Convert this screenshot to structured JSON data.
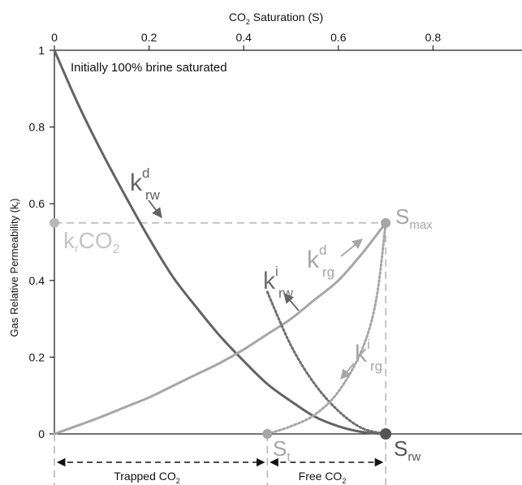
{
  "chart_data": {
    "type": "line",
    "xlabel_main": "CO",
    "xlabel_sub": "2",
    "xlabel_tail": " Saturation (S)",
    "ylabel": "Gas Relative Permeability (k",
    "ylabel_sub": "r",
    "ylabel_tail": ")",
    "xlim": [
      0,
      1
    ],
    "ylim": [
      0,
      1
    ],
    "x_ticks": [
      0,
      0.2,
      0.4,
      0.6,
      0.8
    ],
    "x_tick_labels": [
      "0",
      "0.2",
      "0.4",
      "0.6",
      "0.8"
    ],
    "y_ticks": [
      0,
      0.2,
      0.4,
      0.6,
      0.8,
      1
    ],
    "y_tick_labels": [
      "0",
      "0.2",
      "0.4",
      "0.6",
      "0.8",
      "1"
    ],
    "grid": false,
    "colors": {
      "drainage_brine": "#636363",
      "drainage_gas": "#a6a6a6",
      "imbibition_brine": "#6e6e6e",
      "imbibition_gas": "#a6a6a6",
      "guides": "#b3b3b3",
      "axis": "#222222"
    },
    "annotation_top": "Initially 100% brine saturated",
    "key_points": {
      "S_max": {
        "x": 0.7,
        "y": 0.55
      },
      "S_t": {
        "x": 0.45,
        "y": 0.0
      },
      "S_rw": {
        "x": 0.7,
        "y": 0.0
      },
      "krCO2": {
        "x": 0.0,
        "y": 0.55
      }
    },
    "series": [
      {
        "key": "k_rw_d",
        "style": "solid",
        "x": [
          0,
          0.05,
          0.1,
          0.15,
          0.2,
          0.25,
          0.3,
          0.35,
          0.4,
          0.45,
          0.5,
          0.55,
          0.6,
          0.65,
          0.7
        ],
        "y": [
          1.0,
          0.86,
          0.735,
          0.62,
          0.51,
          0.41,
          0.33,
          0.255,
          0.19,
          0.13,
          0.085,
          0.045,
          0.02,
          0.005,
          0.0
        ]
      },
      {
        "key": "k_rg_d",
        "style": "solid",
        "x": [
          0,
          0.05,
          0.1,
          0.15,
          0.2,
          0.25,
          0.3,
          0.35,
          0.4,
          0.45,
          0.5,
          0.55,
          0.6,
          0.65,
          0.7
        ],
        "y": [
          0.0,
          0.022,
          0.045,
          0.07,
          0.095,
          0.125,
          0.155,
          0.185,
          0.22,
          0.26,
          0.3,
          0.35,
          0.4,
          0.47,
          0.55
        ]
      },
      {
        "key": "k_rw_i",
        "style": "dotted",
        "x": [
          0.45,
          0.5,
          0.55,
          0.6,
          0.65,
          0.7
        ],
        "y": [
          0.37,
          0.23,
          0.13,
          0.06,
          0.015,
          0.0
        ]
      },
      {
        "key": "k_rg_i",
        "style": "dotted",
        "x": [
          0.45,
          0.5,
          0.55,
          0.6,
          0.65,
          0.68,
          0.7
        ],
        "y": [
          0.0,
          0.02,
          0.05,
          0.11,
          0.22,
          0.35,
          0.55
        ]
      }
    ],
    "curve_labels": {
      "k_rw_d": {
        "base": "k",
        "sup": "d",
        "sub": "rw"
      },
      "k_rg_d": {
        "base": "k",
        "sup": "d",
        "sub": "rg"
      },
      "k_rw_i": {
        "base": "k",
        "sup": "i",
        "sub": "rw"
      },
      "k_rg_i": {
        "base": "k",
        "sup": "i",
        "sub": "rg"
      },
      "S_max": {
        "base": "S",
        "sub": "max"
      },
      "S_t": {
        "base": "S",
        "sub": "t"
      },
      "S_rw": {
        "base": "S",
        "sub": "rw"
      },
      "krCO2": {
        "base": "k",
        "sub": "r",
        "tail": "CO",
        "tail_sub": "2"
      }
    },
    "ranges": [
      {
        "key": "trapped",
        "label": "Trapped CO",
        "label_sub": "2",
        "from": 0,
        "to": 0.45
      },
      {
        "key": "free",
        "label": "Free CO",
        "label_sub": "2",
        "from": 0.45,
        "to": 0.7
      }
    ]
  }
}
